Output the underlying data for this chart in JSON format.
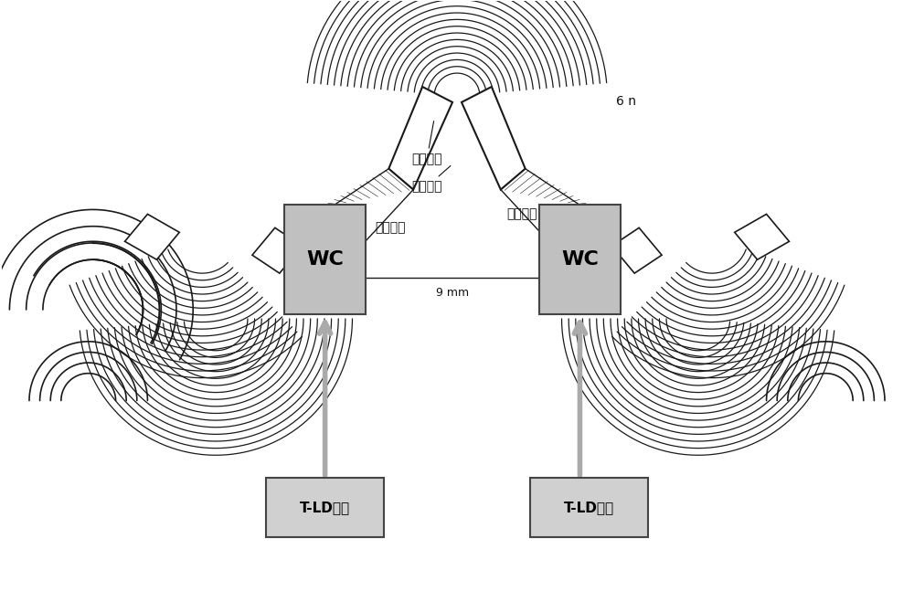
{
  "wc_box_color": "#c0c0c0",
  "wc_box_edge": "#444444",
  "tld_box_color": "#d0d0d0",
  "tld_box_edge": "#444444",
  "label_wc": "WC",
  "label_tld": "T-LD阵列",
  "label_waveguide_grating": "波導光栅",
  "label_free_space": "自由空間",
  "label_fan_waveguide_left": "扇形波導",
  "label_fan_waveguide_right": "扇形波導",
  "label_9mm": "9 mm",
  "label_6n": "6 n",
  "arrow_color": "#aaaaaa",
  "line_color": "#1a1a1a",
  "text_color": "#111111",
  "font_size_wc": 16,
  "font_size_label": 10,
  "font_size_measure": 9
}
